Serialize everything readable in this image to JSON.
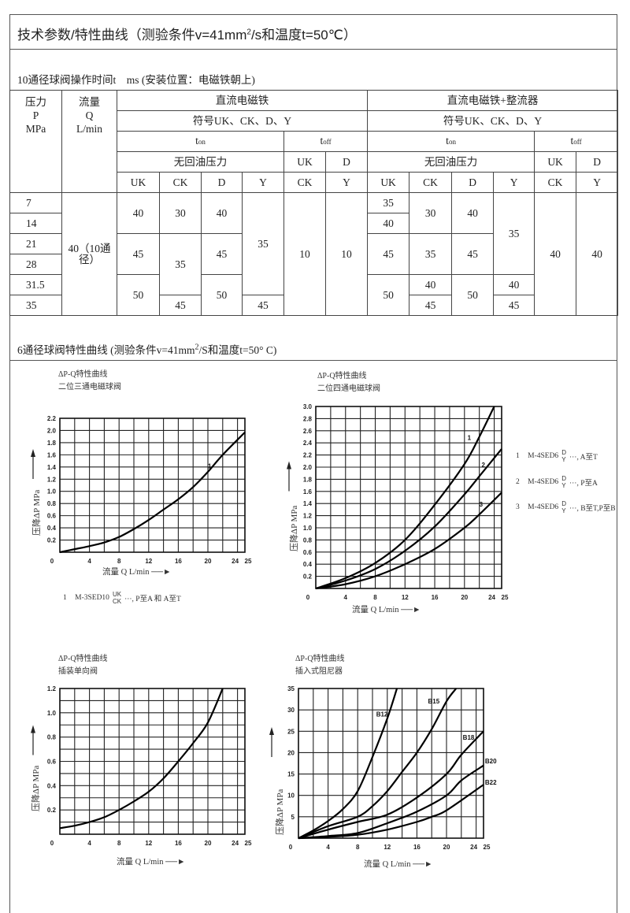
{
  "header": {
    "title_main": "技术参数/特性曲线（测验条件v=41mm",
    "title_sup": "2",
    "title_tail": "/s和温度t=50℃）"
  },
  "section1": {
    "subtitle": "10通径球阀操作时间t　ms (安装位置：电磁铁朝上)"
  },
  "table": {
    "pressure_header": [
      "压力",
      "P",
      "MPa"
    ],
    "flow_header": [
      "流量",
      "Q",
      "L/min"
    ],
    "groups": [
      "直流电磁铁",
      "直流电磁铁+整流器"
    ],
    "symbol_row": "符号UK、CK、D、Y",
    "t_on": {
      "t": "t",
      "sub": "on"
    },
    "t_off": {
      "t": "t",
      "sub": "off"
    },
    "no_return_pressure": "无回油压力",
    "toff_top": [
      "UK",
      "D"
    ],
    "sub_cols": [
      "UK",
      "CK",
      "D",
      "Y"
    ],
    "toff_bottom": [
      "CK",
      "Y"
    ],
    "pressures": [
      "7",
      "14",
      "21",
      "28",
      "31.5",
      "35"
    ],
    "flow": "40（10通径）",
    "dc": {
      "UK": [
        "40",
        "45",
        "50"
      ],
      "CK": [
        "30",
        "35",
        "45"
      ],
      "D": [
        "40",
        "45",
        "50"
      ],
      "Y": [
        "35",
        "45"
      ],
      "toff_CK": "10",
      "toff_Y": "10"
    },
    "dc_rect": {
      "UK": [
        "35",
        "40",
        "45",
        "50"
      ],
      "CK": [
        "30",
        "35",
        "40",
        "45"
      ],
      "D": [
        "40",
        "45",
        "50"
      ],
      "Y": [
        "35",
        "40",
        "45"
      ],
      "toff_CK": "40",
      "toff_Y": "40"
    }
  },
  "section2": {
    "subtitle_main": "6通径球阀特性曲线 (测验条件v=41mm",
    "subtitle_sup": "2",
    "subtitle_tail": "/S和温度t=50° C)"
  },
  "chart_data": [
    {
      "type": "line",
      "title": "ΔP-Q特性曲线",
      "subtitle": "二位三通电磁球阀",
      "xlabel": "流量 Q L/min",
      "ylabel": "压降ΔP MPa",
      "xlim": [
        0,
        25
      ],
      "ylim": [
        0,
        2.2
      ],
      "grid": true,
      "xticks": [
        0,
        4,
        8,
        12,
        16,
        20,
        24,
        25
      ],
      "yticks": [
        "0.2",
        "0.4",
        "0.6",
        "0.8",
        "1.0",
        "1.2",
        "1.4",
        "1.6",
        "1.8",
        "2.0",
        "2.2"
      ],
      "series": [
        {
          "name": "1",
          "x": [
            0,
            2,
            4,
            6,
            8,
            10,
            12,
            14,
            16,
            18,
            20,
            22,
            25
          ],
          "y": [
            0,
            0.05,
            0.1,
            0.16,
            0.25,
            0.38,
            0.53,
            0.7,
            0.87,
            1.07,
            1.32,
            1.6,
            1.97
          ]
        }
      ],
      "legend": [
        {
          "num": "1",
          "model": "M-3SED10",
          "top": "UK",
          "bottom": "CK",
          "tail": "···, P至A 和 A至T"
        }
      ]
    },
    {
      "type": "line",
      "title": "ΔP-Q特性曲线",
      "subtitle": "二位四通电磁球阀",
      "xlabel": "流量 Q L/min",
      "ylabel": "压降ΔP MPa",
      "xlim": [
        0,
        25
      ],
      "ylim": [
        0,
        3.0
      ],
      "grid": true,
      "xticks": [
        0,
        4,
        8,
        12,
        16,
        20,
        24,
        25
      ],
      "yticks": [
        "0.2",
        "0.4",
        "0.6",
        "0.8",
        "1.0",
        "1.2",
        "1.4",
        "1.6",
        "1.8",
        "2.0",
        "2.2",
        "2.4",
        "2.6",
        "2.8",
        "3.0"
      ],
      "series": [
        {
          "name": "1",
          "x": [
            0,
            4,
            8,
            12,
            16,
            20,
            22,
            24
          ],
          "y": [
            0,
            0.17,
            0.42,
            0.8,
            1.38,
            2.05,
            2.5,
            3.0
          ]
        },
        {
          "name": "2",
          "x": [
            0,
            4,
            8,
            12,
            16,
            20,
            22,
            25
          ],
          "y": [
            0,
            0.13,
            0.32,
            0.62,
            1.02,
            1.55,
            1.85,
            2.3
          ]
        },
        {
          "name": "3",
          "x": [
            0,
            4,
            8,
            12,
            16,
            20,
            22,
            25
          ],
          "y": [
            0,
            0.07,
            0.2,
            0.4,
            0.65,
            1.0,
            1.22,
            1.58
          ]
        }
      ],
      "legend": [
        {
          "num": "1",
          "model": "M-4SED6",
          "top": "D",
          "bottom": "Y",
          "tail": "···, A至T"
        },
        {
          "num": "2",
          "model": "M-4SED6",
          "top": "D",
          "bottom": "Y",
          "tail": "···, P至A"
        },
        {
          "num": "3",
          "model": "M-4SED6",
          "top": "D",
          "bottom": "Y",
          "tail": "···, B至T,P至B"
        }
      ]
    },
    {
      "type": "line",
      "title": "ΔP-Q特性曲线",
      "subtitle": "插装单向阀",
      "xlabel": "流量 Q L/min",
      "ylabel": "压降ΔP MPa",
      "xlim": [
        0,
        25
      ],
      "ylim": [
        0,
        1.2
      ],
      "grid": true,
      "xticks": [
        0,
        4,
        8,
        12,
        16,
        20,
        24,
        25
      ],
      "yticks": [
        "0.2",
        "0.4",
        "0.6",
        "0.8",
        "1.0",
        "1.2"
      ],
      "series": [
        {
          "x": [
            0,
            2,
            4,
            6,
            8,
            10,
            12,
            14,
            16,
            18,
            20,
            22
          ],
          "y": [
            0.05,
            0.07,
            0.1,
            0.14,
            0.2,
            0.27,
            0.35,
            0.46,
            0.6,
            0.75,
            0.92,
            1.2
          ]
        }
      ]
    },
    {
      "type": "line",
      "title": "ΔP-Q特性曲线",
      "subtitle": "插入式阻尼器",
      "xlabel": "流量 Q L/min",
      "ylabel": "压降ΔP MPa",
      "xlim": [
        0,
        25
      ],
      "ylim": [
        0,
        35
      ],
      "grid": true,
      "xticks": [
        0,
        4,
        8,
        12,
        16,
        20,
        24,
        25
      ],
      "yticks": [
        "5",
        "10",
        "15",
        "20",
        "25",
        "30",
        "35"
      ],
      "series": [
        {
          "name": "B12",
          "x": [
            0,
            2,
            4,
            6,
            8,
            10,
            12,
            13.3
          ],
          "y": [
            0,
            1.8,
            4,
            6.8,
            11,
            19,
            28,
            35
          ]
        },
        {
          "name": "B15",
          "x": [
            0,
            4,
            8,
            10,
            12,
            14,
            16,
            18,
            20,
            21.3
          ],
          "y": [
            0,
            2.8,
            5,
            7.5,
            11,
            15.5,
            20,
            25.5,
            32,
            35
          ]
        },
        {
          "name": "B18",
          "x": [
            0,
            4,
            8,
            12,
            16,
            20,
            22,
            25
          ],
          "y": [
            0,
            2,
            3.8,
            5.5,
            9.5,
            15,
            19.5,
            25
          ]
        },
        {
          "name": "B20",
          "x": [
            0,
            4,
            8,
            12,
            16,
            20,
            22,
            25
          ],
          "y": [
            0,
            0.5,
            1.2,
            3.5,
            6.2,
            10,
            13.5,
            17
          ]
        },
        {
          "name": "B22",
          "x": [
            0,
            4,
            8,
            12,
            16,
            18,
            20,
            25
          ],
          "y": [
            0,
            0.3,
            0.8,
            2,
            3.8,
            5,
            6.5,
            12.5
          ]
        }
      ]
    }
  ]
}
